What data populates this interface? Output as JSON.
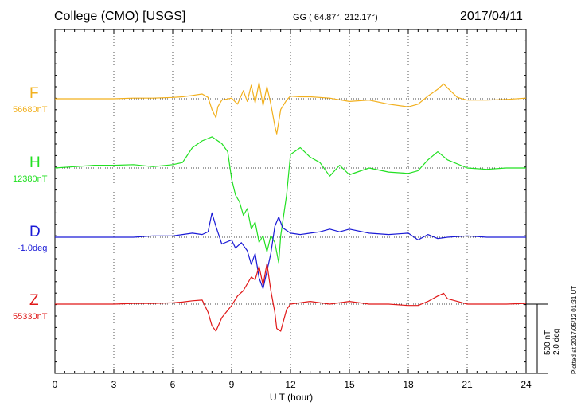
{
  "header": {
    "title": "College (CMO)  [USGS]",
    "coords": "GG ( 64.87°, 212.17°)",
    "date": "2017/04/11"
  },
  "chart_data": {
    "type": "line",
    "xlabel": "U T (hour)",
    "xlim": [
      0,
      24
    ],
    "x_ticks": [
      "0",
      "3",
      "6",
      "9",
      "12",
      "15",
      "18",
      "21",
      "24"
    ],
    "grid": true,
    "scale": {
      "nT": "500 nT",
      "deg": "2.0 deg"
    },
    "plotted_note": "Plotted at 2017/05/12 01:31  UT",
    "series": [
      {
        "name": "F",
        "baseline_label": "56680nT",
        "color": "#f2b01e",
        "x": [
          0,
          1,
          2,
          3,
          4,
          5,
          6,
          6.5,
          7,
          7.5,
          7.8,
          8,
          8.2,
          8.3,
          8.5,
          9,
          9.3,
          9.6,
          9.8,
          10,
          10.2,
          10.4,
          10.6,
          10.8,
          11,
          11.2,
          11.3,
          11.5,
          11.8,
          12,
          12.5,
          13,
          14,
          15,
          16,
          17,
          18,
          18.5,
          19,
          19.5,
          19.8,
          20,
          20.5,
          21,
          22,
          23,
          24
        ],
        "values": [
          0,
          0,
          0,
          0,
          5,
          5,
          10,
          15,
          25,
          35,
          10,
          -80,
          -140,
          -60,
          -10,
          5,
          -40,
          60,
          -20,
          100,
          -30,
          120,
          -50,
          90,
          -40,
          -200,
          -260,
          -80,
          -10,
          20,
          15,
          15,
          5,
          -20,
          -10,
          -40,
          -60,
          -40,
          20,
          70,
          110,
          80,
          10,
          -10,
          -10,
          -5,
          5
        ]
      },
      {
        "name": "H",
        "baseline_label": "12380nT",
        "color": "#22e022",
        "x": [
          0,
          1,
          2,
          3,
          4,
          5,
          6,
          6.5,
          7,
          7.5,
          8,
          8.5,
          8.8,
          9,
          9.2,
          9.4,
          9.6,
          9.8,
          10,
          10.2,
          10.4,
          10.6,
          10.8,
          11,
          11.2,
          11.4,
          11.5,
          11.8,
          12,
          12.5,
          13,
          13.5,
          14,
          14.5,
          15,
          16,
          17,
          18,
          18.5,
          19,
          19.5,
          20,
          21,
          22,
          23,
          24
        ],
        "values": [
          0,
          10,
          20,
          20,
          25,
          10,
          25,
          40,
          150,
          200,
          230,
          180,
          120,
          -80,
          -200,
          -250,
          -350,
          -300,
          -450,
          -400,
          -550,
          -500,
          -620,
          -500,
          -550,
          -700,
          -500,
          -200,
          100,
          150,
          80,
          40,
          -60,
          20,
          -50,
          0,
          -30,
          -40,
          -20,
          60,
          120,
          60,
          0,
          -10,
          0,
          0
        ]
      },
      {
        "name": "D",
        "baseline_label": "-1.0deg",
        "color": "#1a1ad6",
        "x": [
          0,
          1,
          2,
          3,
          4,
          5,
          6,
          6.5,
          7,
          7.5,
          7.8,
          8,
          8.2,
          8.5,
          9,
          9.2,
          9.5,
          9.8,
          10,
          10.2,
          10.4,
          10.6,
          10.8,
          11,
          11.2,
          11.4,
          11.6,
          12,
          12.5,
          13,
          13.5,
          14,
          14.5,
          15,
          16,
          17,
          18,
          18.5,
          19,
          19.5,
          20,
          21,
          22,
          23,
          24
        ],
        "values": [
          0,
          0,
          0,
          0,
          0,
          10,
          10,
          20,
          30,
          20,
          40,
          180,
          80,
          -50,
          -20,
          -80,
          -40,
          -100,
          -200,
          -120,
          -300,
          -380,
          -250,
          -120,
          80,
          150,
          70,
          30,
          20,
          30,
          40,
          60,
          40,
          60,
          30,
          20,
          30,
          -20,
          20,
          -10,
          0,
          10,
          0,
          0,
          0
        ]
      },
      {
        "name": "Z",
        "baseline_label": "55330nT",
        "color": "#e01818",
        "x": [
          0,
          1,
          2,
          3,
          4,
          5,
          6,
          6.5,
          7,
          7.5,
          7.8,
          8,
          8.2,
          8.5,
          9,
          9.3,
          9.6,
          9.8,
          10,
          10.2,
          10.4,
          10.6,
          10.8,
          11,
          11.2,
          11.3,
          11.5,
          11.8,
          12,
          12.5,
          13,
          14,
          15,
          16,
          17,
          18,
          18.5,
          19,
          19.5,
          19.8,
          20,
          20.5,
          21,
          22,
          23,
          24
        ],
        "values": [
          0,
          0,
          0,
          0,
          5,
          5,
          10,
          15,
          25,
          30,
          -60,
          -160,
          -200,
          -100,
          -10,
          60,
          100,
          150,
          200,
          180,
          280,
          140,
          300,
          100,
          -60,
          -180,
          -200,
          -40,
          0,
          10,
          20,
          0,
          20,
          0,
          0,
          -10,
          -10,
          20,
          60,
          80,
          40,
          20,
          0,
          0,
          0,
          5
        ]
      }
    ]
  }
}
